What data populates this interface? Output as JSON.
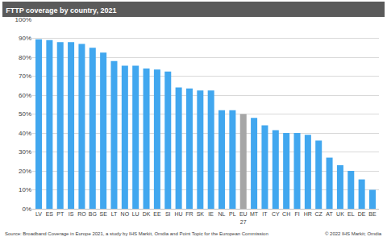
{
  "chart_data": {
    "type": "bar",
    "title": "FTTP coverage by country, 2021",
    "categories": [
      "LV",
      "ES",
      "PT",
      "IS",
      "RO",
      "BG",
      "SE",
      "LT",
      "NO",
      "LU",
      "DK",
      "EE",
      "SI",
      "HU",
      "FR",
      "SK",
      "IE",
      "NL",
      "PL",
      "EU 27",
      "MT",
      "IT",
      "CY",
      "CH",
      "FI",
      "HR",
      "CZ",
      "AT",
      "UK",
      "EL",
      "DE",
      "BE"
    ],
    "values": [
      89.5,
      89,
      88,
      88,
      87,
      85,
      82.5,
      78,
      75.5,
      75.5,
      74,
      73.5,
      72.5,
      64,
      63.5,
      62.5,
      62.5,
      52,
      52,
      50,
      48,
      44,
      41.5,
      40,
      40,
      39,
      36,
      27,
      23,
      20,
      15.5,
      10
    ],
    "colors": [
      "#41a7ef",
      "#41a7ef",
      "#41a7ef",
      "#41a7ef",
      "#41a7ef",
      "#41a7ef",
      "#41a7ef",
      "#41a7ef",
      "#41a7ef",
      "#41a7ef",
      "#41a7ef",
      "#41a7ef",
      "#41a7ef",
      "#41a7ef",
      "#41a7ef",
      "#41a7ef",
      "#41a7ef",
      "#41a7ef",
      "#41a7ef",
      "#a6a6a6",
      "#41a7ef",
      "#41a7ef",
      "#41a7ef",
      "#41a7ef",
      "#41a7ef",
      "#41a7ef",
      "#41a7ef",
      "#41a7ef",
      "#41a7ef",
      "#41a7ef",
      "#41a7ef",
      "#41a7ef"
    ],
    "ylim": [
      0,
      100
    ],
    "yticks": [
      {
        "value": 0,
        "label": "0%"
      },
      {
        "value": 10,
        "label": "10%"
      },
      {
        "value": 20,
        "label": "20%"
      },
      {
        "value": 30,
        "label": "30%"
      },
      {
        "value": 40,
        "label": "40%"
      },
      {
        "value": 50,
        "label": "50%"
      },
      {
        "value": 60,
        "label": "60%"
      },
      {
        "value": 70,
        "label": "70%"
      },
      {
        "value": 80,
        "label": "80%"
      },
      {
        "value": 90,
        "label": "90%"
      },
      {
        "value": 100,
        "label": "100%"
      }
    ],
    "grid": true,
    "annotations": [
      "Source: Broadband Coverage in Europe 2021, a study by IHS Markit, Omdia and Point Topic for the European Commission",
      "© 2022 IHS Markit; Omdia"
    ]
  }
}
